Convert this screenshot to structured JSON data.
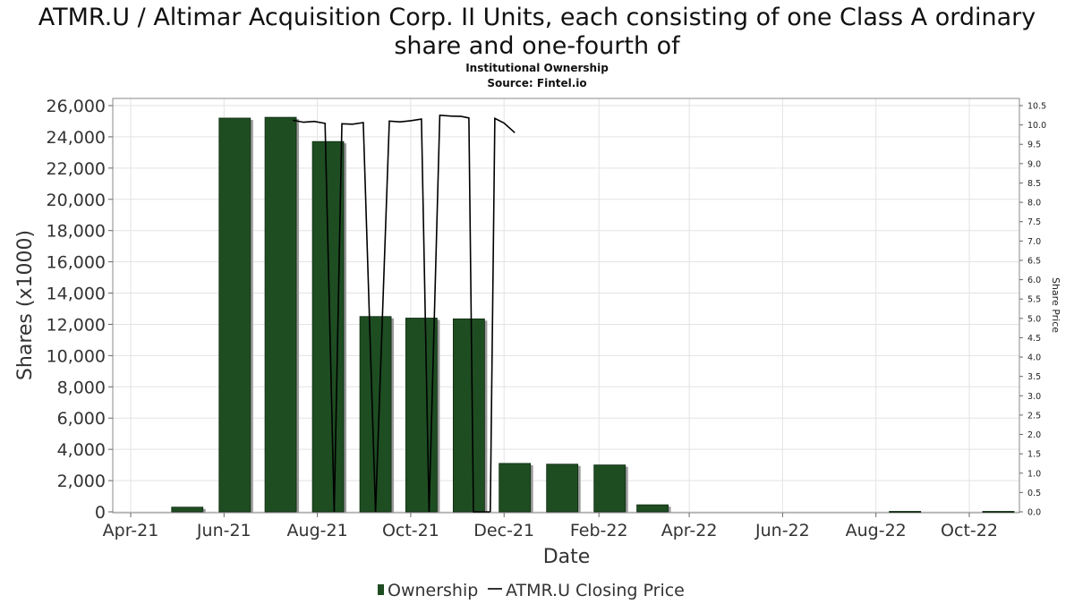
{
  "chart_data": {
    "type": "bar",
    "title": "ATMR.U / Altimar Acquisition Corp. II Units, each consisting of one Class A ordinary share and one-fourth of",
    "title_lines": [
      "ATMR.U / Altimar Acquisition Corp. II Units, each consisting of one Class A ordinary",
      "share and one-fourth of"
    ],
    "subtitle_lines": [
      "Institutional Ownership",
      "Source: Fintel.io"
    ],
    "xlabel": "Date",
    "ylabel": "Shares (x1000)",
    "y2label": "Share Price",
    "ylim": [
      0,
      26000
    ],
    "y2lim": [
      0,
      10.5
    ],
    "grid": true,
    "legend_position": "bottom-center",
    "x_ticks": [
      "Apr-21",
      "Jun-21",
      "Aug-21",
      "Oct-21",
      "Dec-21",
      "Feb-22",
      "Apr-22",
      "Jun-22",
      "Aug-22",
      "Oct-22"
    ],
    "y_ticks": [
      "0",
      "2,000",
      "4,000",
      "6,000",
      "8,000",
      "10,000",
      "12,000",
      "14,000",
      "16,000",
      "18,000",
      "20,000",
      "22,000",
      "24,000",
      "26,000"
    ],
    "y2_ticks": [
      "0.0",
      "0.5",
      "1.0",
      "1.5",
      "2.0",
      "2.5",
      "3.0",
      "3.5",
      "4.0",
      "4.5",
      "5.0",
      "5.5",
      "6.0",
      "6.5",
      "7.0",
      "7.5",
      "8.0",
      "8.5",
      "9.0",
      "9.5",
      "10.0",
      "10.5"
    ],
    "series": [
      {
        "name": "Ownership",
        "kind": "bar",
        "color": "#1e4d22",
        "points": [
          {
            "date": "2021-05-08",
            "value": 300
          },
          {
            "date": "2021-06-08",
            "value": 25200
          },
          {
            "date": "2021-07-08",
            "value": 25250
          },
          {
            "date": "2021-08-08",
            "value": 23700
          },
          {
            "date": "2021-09-08",
            "value": 12500
          },
          {
            "date": "2021-10-08",
            "value": 12400
          },
          {
            "date": "2021-11-08",
            "value": 12350
          },
          {
            "date": "2021-12-08",
            "value": 3100
          },
          {
            "date": "2022-01-08",
            "value": 3050
          },
          {
            "date": "2022-02-08",
            "value": 3000
          },
          {
            "date": "2022-03-08",
            "value": 450
          },
          {
            "date": "2022-08-20",
            "value": 30
          },
          {
            "date": "2022-10-20",
            "value": 30
          }
        ]
      },
      {
        "name": "ATMR.U Closing Price",
        "kind": "line",
        "color": "#000000",
        "segments": [
          [
            [
              "2021-07-16",
              10.12
            ],
            [
              "2021-07-23",
              10.07
            ],
            [
              "2021-07-30",
              10.09
            ],
            [
              "2021-08-06",
              10.04
            ],
            [
              "2021-08-12",
              0.0
            ]
          ],
          [
            [
              "2021-08-12",
              0.0
            ],
            [
              "2021-08-17",
              10.03
            ],
            [
              "2021-08-24",
              10.02
            ],
            [
              "2021-08-31",
              10.06
            ],
            [
              "2021-09-08",
              0.0
            ]
          ],
          [
            [
              "2021-09-08",
              0.0
            ],
            [
              "2021-09-17",
              10.1
            ],
            [
              "2021-09-24",
              10.08
            ],
            [
              "2021-10-01",
              10.11
            ],
            [
              "2021-10-08",
              10.15
            ],
            [
              "2021-10-13",
              0.0
            ]
          ],
          [
            [
              "2021-10-13",
              0.0
            ],
            [
              "2021-10-20",
              10.25
            ],
            [
              "2021-10-27",
              10.23
            ],
            [
              "2021-11-03",
              10.22
            ],
            [
              "2021-11-08",
              10.18
            ],
            [
              "2021-11-11",
              0.0
            ],
            [
              "2021-11-22",
              0.0
            ]
          ],
          [
            [
              "2021-11-22",
              0.0
            ],
            [
              "2021-11-25",
              10.17
            ],
            [
              "2021-12-01",
              10.05
            ],
            [
              "2021-12-08",
              9.8
            ]
          ]
        ]
      }
    ]
  }
}
